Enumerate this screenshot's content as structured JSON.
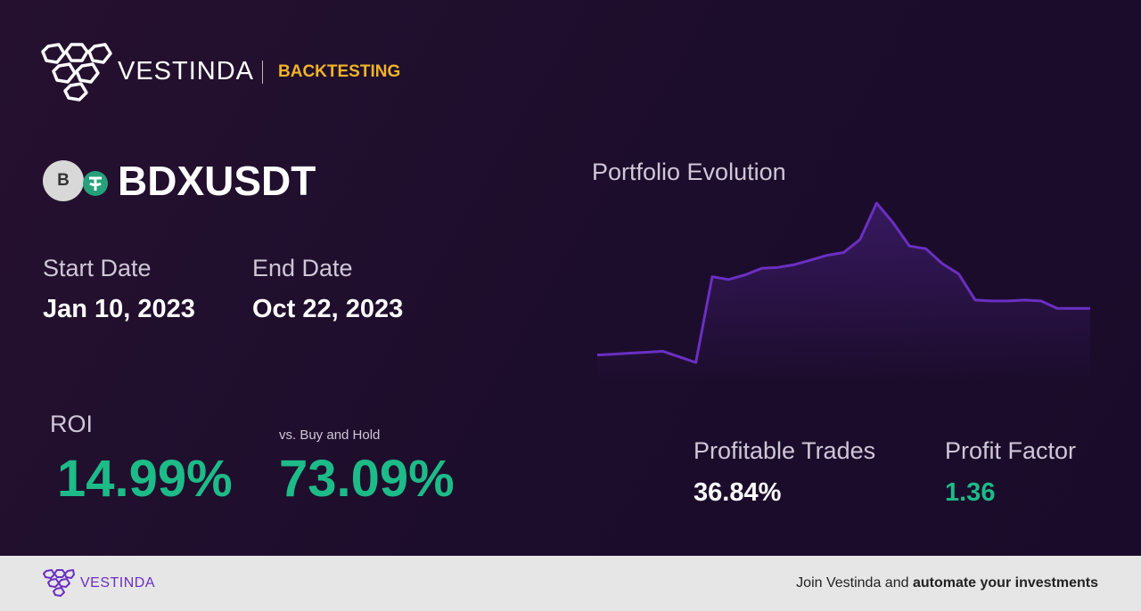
{
  "header": {
    "brand": "VESTINDA",
    "tag": "BACKTESTING"
  },
  "pair": {
    "base_icon": "B",
    "symbol": "BDXUSDT"
  },
  "dates": {
    "start_label": "Start Date",
    "start": "Jan 10, 2023",
    "end_label": "End Date",
    "end": "Oct 22, 2023"
  },
  "roi": {
    "label": "ROI",
    "value": "14.99%",
    "vs_label": "vs. Buy and Hold",
    "vs_value": "73.09%"
  },
  "stats": {
    "profitable_label": "Profitable Trades",
    "profitable_value": "36.84%",
    "factor_label": "Profit Factor",
    "factor_value": "1.36"
  },
  "portfolio_chart": {
    "type": "line",
    "title": "Portfolio Evolution",
    "color": "#6a2fc2",
    "values": [
      100,
      100.3,
      100.6,
      100.9,
      101.2,
      99.4,
      97.6,
      125.2,
      124.3,
      125.8,
      127.9,
      128.2,
      129.1,
      130.6,
      132.1,
      133,
      137.2,
      148.9,
      142.6,
      135.1,
      134.2,
      129.4,
      126.1,
      117.7,
      117.4,
      117.4,
      117.7,
      117.4,
      115,
      115,
      115
    ]
  },
  "footer": {
    "brand": "VESTINDA",
    "cta_plain": "Join Vestinda and ",
    "cta_bold": "automate your investments"
  }
}
